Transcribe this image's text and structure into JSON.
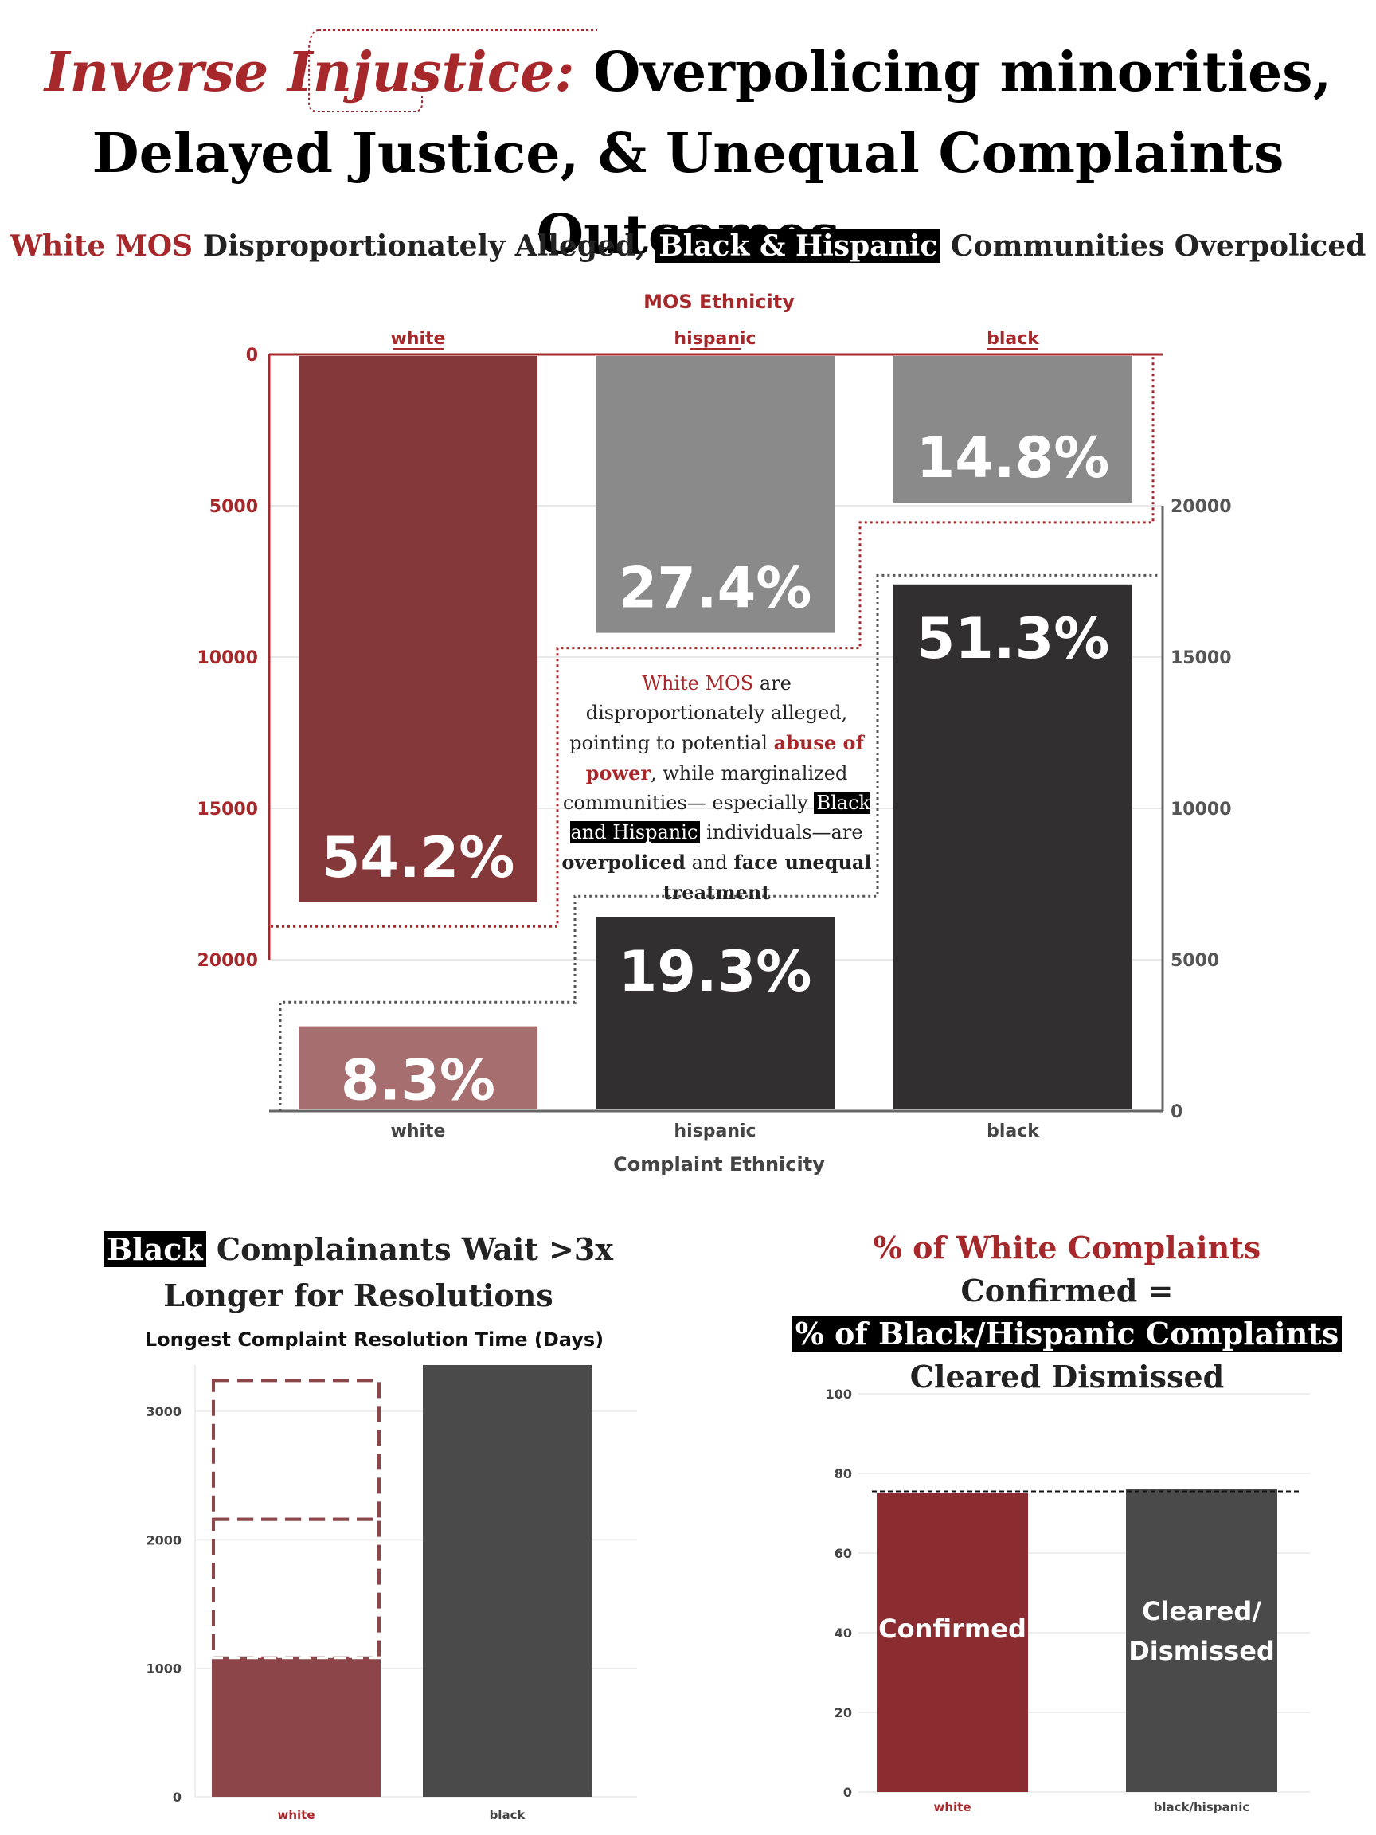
{
  "title": {
    "highlight": "Inverse Injustice:",
    "line1_rest": "Overpolicing minorities,",
    "line2": "Delayed Justice, & Unequal Complaints Outcomes"
  },
  "section1": {
    "heading_red": "White MOS",
    "heading_mid": "Disproportionately Alleged,",
    "heading_hl": "Black & Hispanic",
    "heading_end": "Communities Overpoliced",
    "note": {
      "p1": "White MOS",
      "p2": "are disproportionately alleged, pointing to potential",
      "p3": "abuse of power",
      "p4": ", while marginalized communities— especially",
      "p5": "Black and Hispanic",
      "p6": "individuals—are",
      "p7": "overpoliced",
      "p8": "and",
      "p9": "face unequal treatment"
    }
  },
  "section2": {
    "heading_hl": "Black",
    "heading_rest": "Complainants Wait >3x Longer for Resolutions"
  },
  "section3": {
    "heading_red": "% of White Complaints",
    "heading_mid": "Confirmed =",
    "heading_hl": "% of Black/Hispanic Complaints",
    "heading_end": "Cleared Dismissed"
  },
  "colors": {
    "accent_red": "#a7282b",
    "white_mos_bar": "#843839",
    "hispanic_mos_bar": "#8a8a8a",
    "black_mos_bar": "#8a8a8a",
    "white_complaint_bar": "#a66e6e",
    "dark_bar": "#312f2f"
  },
  "chart_data": [
    {
      "type": "bar",
      "title": "MOS Ethnicity",
      "xlabel": "Complaint Ethnicity",
      "categories": [
        "white",
        "hispanic",
        "black"
      ],
      "series": [
        {
          "axis": "top (inverted, left scale)",
          "values": [
            18100,
            9200,
            4900
          ],
          "labels": [
            "54.2%",
            "27.4%",
            "14.8%"
          ]
        },
        {
          "axis": "bottom (right scale)",
          "values": [
            2800,
            6400,
            17400
          ],
          "labels": [
            "8.3%",
            "19.3%",
            "51.3%"
          ]
        }
      ],
      "left_axis": {
        "ticks": [
          "0",
          "5000",
          "10000",
          "15000",
          "20000"
        ],
        "range": [
          0,
          25000
        ]
      },
      "right_axis": {
        "ticks": [
          "0",
          "5000",
          "10000",
          "15000",
          "20000"
        ],
        "range": [
          0,
          25000
        ]
      },
      "grid": true
    },
    {
      "type": "bar",
      "title": "Longest Complaint Resolution Time (Days)",
      "categories": [
        "white",
        "black"
      ],
      "values": [
        1080,
        3360
      ],
      "dashed_multiples": [
        2160,
        3240
      ],
      "yticks": [
        "0",
        "1000",
        "2000",
        "3000"
      ],
      "ylim": [
        0,
        3360
      ],
      "grid": true
    },
    {
      "type": "bar",
      "categories": [
        "white",
        "black/hispanic"
      ],
      "values": [
        75,
        76
      ],
      "bar_labels": [
        "Confirmed",
        "Cleared/ Dismissed"
      ],
      "reference_line": 75.5,
      "yticks": [
        "0",
        "20",
        "40",
        "60",
        "80",
        "100"
      ],
      "ylim": [
        0,
        100
      ],
      "grid": true
    }
  ]
}
